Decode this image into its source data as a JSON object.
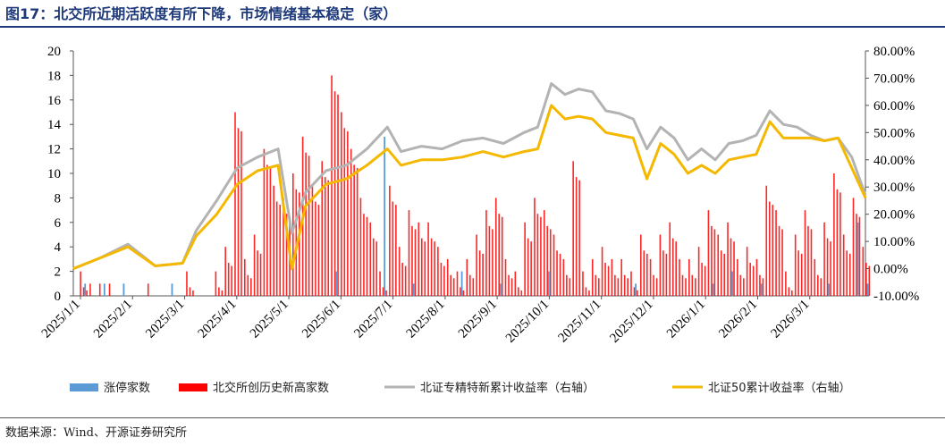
{
  "figure": {
    "title": "图17：北交所近期活跃度有所下降，市场情绪基本稳定（家）",
    "source": "数据来源：Wind、开源证券研究所"
  },
  "colors": {
    "title": "#1f3a7a",
    "limit_up": "#5b9bd5",
    "new_high": "#ff0000",
    "specialized_index": "#b3b3b3",
    "bse50": "#f5b800"
  },
  "chart_data": {
    "type": "bar",
    "left_axis": {
      "ylim": [
        0,
        20
      ],
      "ticks": [
        "0",
        "2",
        "4",
        "6",
        "8",
        "10",
        "12",
        "14",
        "16",
        "18",
        "20"
      ]
    },
    "right_axis": {
      "ylim": [
        -10,
        80
      ],
      "ticks": [
        "-10.00%",
        "0.00%",
        "10.00%",
        "20.00%",
        "30.00%",
        "40.00%",
        "50.00%",
        "60.00%",
        "70.00%",
        "80.00%"
      ]
    },
    "x_ticks": [
      "2025/1/1",
      "2025/2/1",
      "2025/3/1",
      "2025/4/1",
      "2025/5/1",
      "2025/6/1",
      "2025/7/1",
      "2025/8/1",
      "2025/9/1",
      "2025/10/1",
      "2025/11/1",
      "2025/12/1",
      "2026/1/1",
      "2026/2/1",
      "2026/3/1"
    ],
    "x_range_days": [
      0,
      82
    ],
    "legend": [
      "涨停家数",
      "北交所创历史新高家数",
      "北证专精特新累计收益率（右轴）",
      "北证50累计收益率（右轴）"
    ],
    "legend_placement": "bottom",
    "series": [
      {
        "name": "北交所创历史新高家数",
        "type": "bar",
        "axis": "left",
        "points": [
          [
            1,
            2
          ],
          [
            2,
            1
          ],
          [
            3,
            1
          ],
          [
            4,
            1
          ],
          [
            8,
            1
          ],
          [
            12,
            2
          ],
          [
            15,
            2
          ],
          [
            16,
            4
          ],
          [
            17,
            15
          ],
          [
            18,
            3
          ],
          [
            19,
            5
          ],
          [
            20,
            12
          ],
          [
            21,
            9
          ],
          [
            22,
            8
          ],
          [
            23,
            10
          ],
          [
            24,
            13
          ],
          [
            25,
            9
          ],
          [
            26,
            11
          ],
          [
            27,
            18
          ],
          [
            28,
            15
          ],
          [
            29,
            12
          ],
          [
            30,
            8
          ],
          [
            31,
            6
          ],
          [
            32,
            2
          ],
          [
            33,
            9
          ],
          [
            34,
            4
          ],
          [
            35,
            7
          ],
          [
            36,
            6
          ],
          [
            37,
            6
          ],
          [
            38,
            4
          ],
          [
            39,
            3
          ],
          [
            40,
            2
          ],
          [
            41,
            3
          ],
          [
            42,
            5
          ],
          [
            43,
            7
          ],
          [
            44,
            8
          ],
          [
            45,
            3
          ],
          [
            46,
            2
          ],
          [
            47,
            6
          ],
          [
            48,
            8
          ],
          [
            49,
            7
          ],
          [
            50,
            5
          ],
          [
            51,
            3
          ],
          [
            52,
            11
          ],
          [
            53,
            2
          ],
          [
            54,
            3
          ],
          [
            55,
            4
          ],
          [
            56,
            3
          ],
          [
            57,
            3
          ],
          [
            58,
            2
          ],
          [
            59,
            5
          ],
          [
            60,
            3
          ],
          [
            61,
            5
          ],
          [
            62,
            6
          ],
          [
            63,
            3
          ],
          [
            64,
            3
          ],
          [
            65,
            4
          ],
          [
            66,
            7
          ],
          [
            67,
            5
          ],
          [
            68,
            6
          ],
          [
            69,
            3
          ],
          [
            70,
            4
          ],
          [
            71,
            3
          ],
          [
            72,
            9
          ],
          [
            73,
            7
          ],
          [
            74,
            2
          ],
          [
            75,
            5
          ],
          [
            76,
            7
          ],
          [
            77,
            3
          ],
          [
            78,
            6
          ],
          [
            79,
            10
          ],
          [
            80,
            5
          ],
          [
            81,
            8
          ],
          [
            82,
            4
          ]
        ]
      },
      {
        "name": "涨停家数",
        "type": "bar",
        "axis": "left",
        "points": [
          [
            1,
            1
          ],
          [
            3,
            1
          ],
          [
            5,
            1
          ],
          [
            10,
            1
          ],
          [
            27,
            2
          ],
          [
            32,
            13
          ],
          [
            35,
            1
          ],
          [
            40,
            2
          ],
          [
            44,
            1
          ],
          [
            49,
            2
          ],
          [
            58,
            1
          ],
          [
            66,
            1
          ],
          [
            68,
            2
          ],
          [
            71,
            1
          ],
          [
            78,
            1
          ],
          [
            81,
            6
          ],
          [
            82,
            1
          ]
        ]
      },
      {
        "name": "北证专精特新累计收益率（右轴）",
        "type": "line",
        "axis": "right",
        "points": [
          [
            0,
            0
          ],
          [
            4,
            4
          ],
          [
            8,
            9
          ],
          [
            12,
            1
          ],
          [
            16,
            2
          ],
          [
            18,
            14
          ],
          [
            21,
            25
          ],
          [
            24,
            37
          ],
          [
            27,
            41
          ],
          [
            30,
            44
          ],
          [
            32,
            13
          ],
          [
            34,
            28
          ],
          [
            37,
            36
          ],
          [
            40,
            38
          ],
          [
            43,
            44
          ],
          [
            46,
            52
          ],
          [
            48,
            43
          ],
          [
            51,
            45
          ],
          [
            54,
            44
          ],
          [
            57,
            47
          ],
          [
            60,
            48
          ],
          [
            63,
            46
          ],
          [
            66,
            50
          ],
          [
            68,
            52
          ],
          [
            70,
            68
          ],
          [
            72,
            64
          ],
          [
            74,
            66
          ],
          [
            76,
            65
          ],
          [
            78,
            58
          ],
          [
            80,
            57
          ],
          [
            82,
            55
          ],
          [
            84,
            44
          ],
          [
            86,
            52
          ],
          [
            88,
            48
          ],
          [
            90,
            40
          ],
          [
            92,
            44
          ],
          [
            94,
            40
          ],
          [
            96,
            46
          ],
          [
            98,
            47
          ],
          [
            100,
            49
          ],
          [
            102,
            58
          ],
          [
            104,
            53
          ],
          [
            106,
            52
          ],
          [
            108,
            49
          ],
          [
            110,
            47
          ],
          [
            112,
            48
          ],
          [
            114,
            41
          ],
          [
            116,
            27
          ]
        ]
      },
      {
        "name": "北证50累计收益率（右轴）",
        "type": "line",
        "axis": "right",
        "points": [
          [
            0,
            0
          ],
          [
            4,
            4
          ],
          [
            8,
            8
          ],
          [
            12,
            1
          ],
          [
            16,
            2
          ],
          [
            18,
            12
          ],
          [
            21,
            20
          ],
          [
            24,
            31
          ],
          [
            27,
            36
          ],
          [
            30,
            38
          ],
          [
            32,
            0
          ],
          [
            34,
            23
          ],
          [
            37,
            31
          ],
          [
            40,
            33
          ],
          [
            43,
            38
          ],
          [
            46,
            44
          ],
          [
            48,
            38
          ],
          [
            51,
            40
          ],
          [
            54,
            40
          ],
          [
            57,
            41
          ],
          [
            60,
            43
          ],
          [
            63,
            41
          ],
          [
            66,
            43
          ],
          [
            68,
            44
          ],
          [
            70,
            60
          ],
          [
            72,
            55
          ],
          [
            74,
            56
          ],
          [
            76,
            55
          ],
          [
            78,
            50
          ],
          [
            80,
            49
          ],
          [
            82,
            48
          ],
          [
            84,
            33
          ],
          [
            86,
            46
          ],
          [
            88,
            42
          ],
          [
            90,
            35
          ],
          [
            92,
            38
          ],
          [
            94,
            35
          ],
          [
            96,
            40
          ],
          [
            98,
            41
          ],
          [
            100,
            42
          ],
          [
            102,
            54
          ],
          [
            104,
            48
          ],
          [
            106,
            48
          ],
          [
            108,
            48
          ],
          [
            110,
            47
          ],
          [
            112,
            48
          ],
          [
            114,
            37
          ],
          [
            116,
            26
          ]
        ]
      }
    ]
  }
}
